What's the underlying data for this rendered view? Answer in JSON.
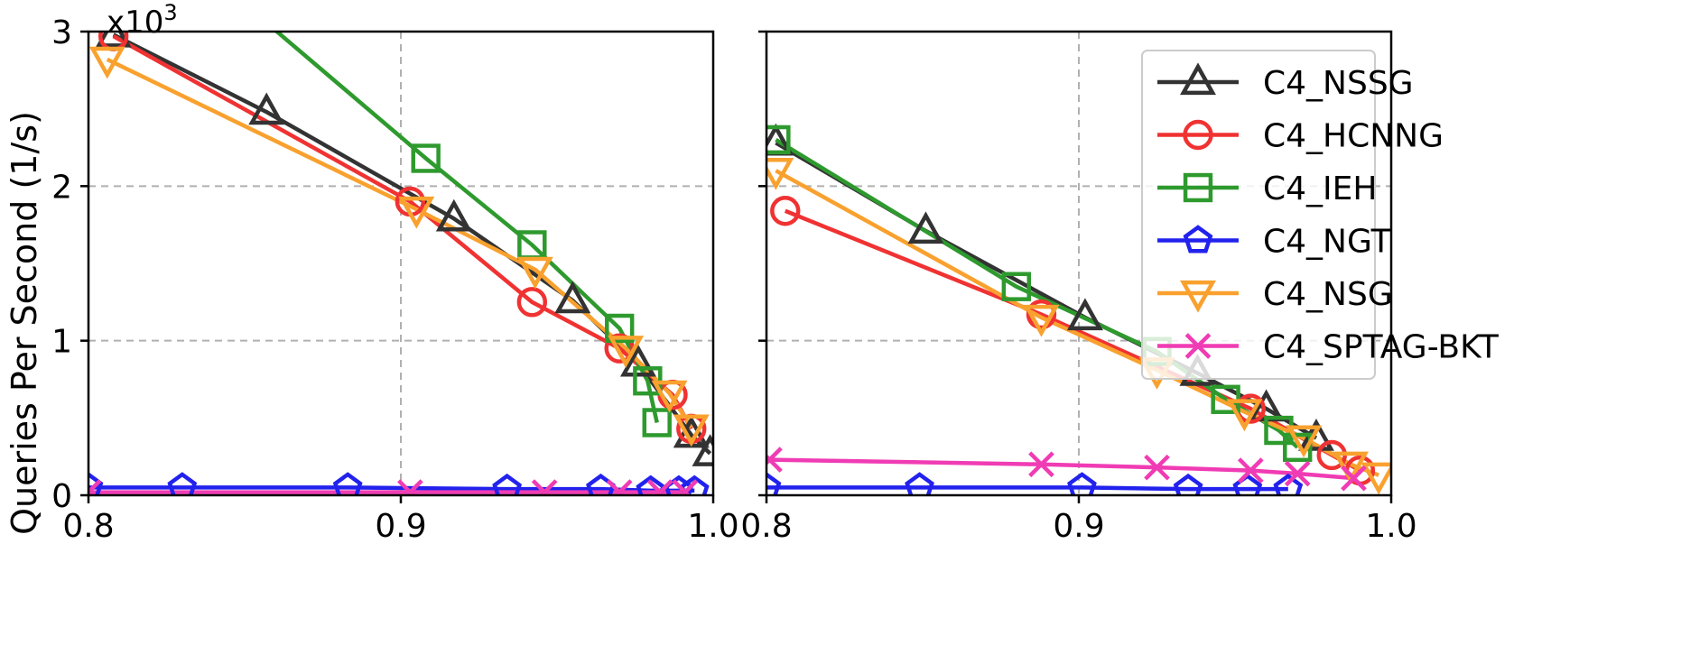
{
  "chart_data": [
    {
      "type": "line",
      "panel": "left",
      "xlim": [
        0.8,
        1.0
      ],
      "ylim": [
        0,
        3000
      ],
      "x_ticks": [
        0.8,
        0.9,
        1.0
      ],
      "x_tick_labels": [
        "0.8",
        "0.9",
        "1.0"
      ],
      "y_ticks": [
        0,
        1000,
        2000,
        3000
      ],
      "y_tick_labels": [
        "0",
        "1",
        "2",
        "3"
      ],
      "ylabel": "Queries Per Second (1/s)",
      "y_multiplier": "x10",
      "y_multiplier_exp": "3",
      "grid": true,
      "series": [
        {
          "name": "C4_NSSG",
          "color": "#333333",
          "marker": "triangle",
          "x": [
            0.808,
            0.857,
            0.917,
            0.955,
            0.976,
            0.993,
            0.999
          ],
          "y": [
            2980,
            2480,
            1790,
            1260,
            850,
            390,
            270
          ]
        },
        {
          "name": "C4_HCNNG",
          "color": "#f03232",
          "marker": "circle",
          "x": [
            0.808,
            0.903,
            0.942,
            0.97,
            0.987,
            0.993
          ],
          "y": [
            2970,
            1900,
            1250,
            950,
            650,
            430
          ]
        },
        {
          "name": "C4_IEH",
          "color": "#2e9a2e",
          "marker": "square",
          "x": [
            0.808,
            0.908,
            0.942,
            0.97,
            0.979,
            0.982
          ],
          "y": [
            3900,
            2180,
            1620,
            1080,
            740,
            470
          ]
        },
        {
          "name": "C4_NGT",
          "color": "#2222ee",
          "marker": "pentagon",
          "x": [
            0.8,
            0.83,
            0.883,
            0.934,
            0.964,
            0.98,
            0.989,
            0.994
          ],
          "y": [
            50,
            50,
            50,
            40,
            40,
            30,
            30,
            30
          ]
        },
        {
          "name": "C4_NSG",
          "color": "#f9a12e",
          "marker": "triangle-down",
          "x": [
            0.806,
            0.905,
            0.943,
            0.972,
            0.986,
            0.993
          ],
          "y": [
            2820,
            1850,
            1460,
            950,
            660,
            440
          ]
        },
        {
          "name": "C4_SPTAG-BKT",
          "color": "#f03cb4",
          "marker": "x",
          "x": [
            0.8,
            0.903,
            0.946,
            0.97,
            0.983,
            0.991
          ],
          "y": [
            20,
            20,
            20,
            20,
            20,
            20
          ]
        }
      ]
    },
    {
      "type": "line",
      "panel": "right",
      "xlim": [
        0.8,
        1.0
      ],
      "ylim": [
        0,
        3000
      ],
      "x_ticks": [
        0.8,
        0.9,
        1.0
      ],
      "x_tick_labels": [
        "0.8",
        "0.9",
        "1.0"
      ],
      "y_ticks": [
        0,
        1000,
        2000,
        3000
      ],
      "grid": true,
      "legend_position": "top-right",
      "series": [
        {
          "name": "C4_NSSG",
          "color": "#333333",
          "marker": "triangle",
          "x": [
            0.803,
            0.851,
            0.902,
            0.938,
            0.96,
            0.976
          ],
          "y": [
            2280,
            1710,
            1150,
            790,
            560,
            370
          ]
        },
        {
          "name": "C4_HCNNG",
          "color": "#f03232",
          "marker": "circle",
          "x": [
            0.806,
            0.888,
            0.955,
            0.981,
            0.99
          ],
          "y": [
            1840,
            1170,
            560,
            260,
            160
          ]
        },
        {
          "name": "C4_IEH",
          "color": "#2e9a2e",
          "marker": "square",
          "x": [
            0.803,
            0.88,
            0.925,
            0.947,
            0.964,
            0.97
          ],
          "y": [
            2300,
            1350,
            930,
            620,
            420,
            310
          ]
        },
        {
          "name": "C4_NGT",
          "color": "#2222ee",
          "marker": "pentagon",
          "x": [
            0.8,
            0.849,
            0.901,
            0.935,
            0.954,
            0.967
          ],
          "y": [
            50,
            50,
            50,
            40,
            40,
            40
          ]
        },
        {
          "name": "C4_NSG",
          "color": "#f9a12e",
          "marker": "triangle-down",
          "x": [
            0.803,
            0.888,
            0.925,
            0.953,
            0.972,
            0.987,
            0.996
          ],
          "y": [
            2100,
            1150,
            810,
            540,
            370,
            200,
            130
          ]
        },
        {
          "name": "C4_SPTAG-BKT",
          "color": "#f03cb4",
          "marker": "x",
          "x": [
            0.801,
            0.888,
            0.925,
            0.955,
            0.97,
            0.988
          ],
          "y": [
            230,
            200,
            180,
            160,
            140,
            110
          ]
        }
      ]
    }
  ]
}
